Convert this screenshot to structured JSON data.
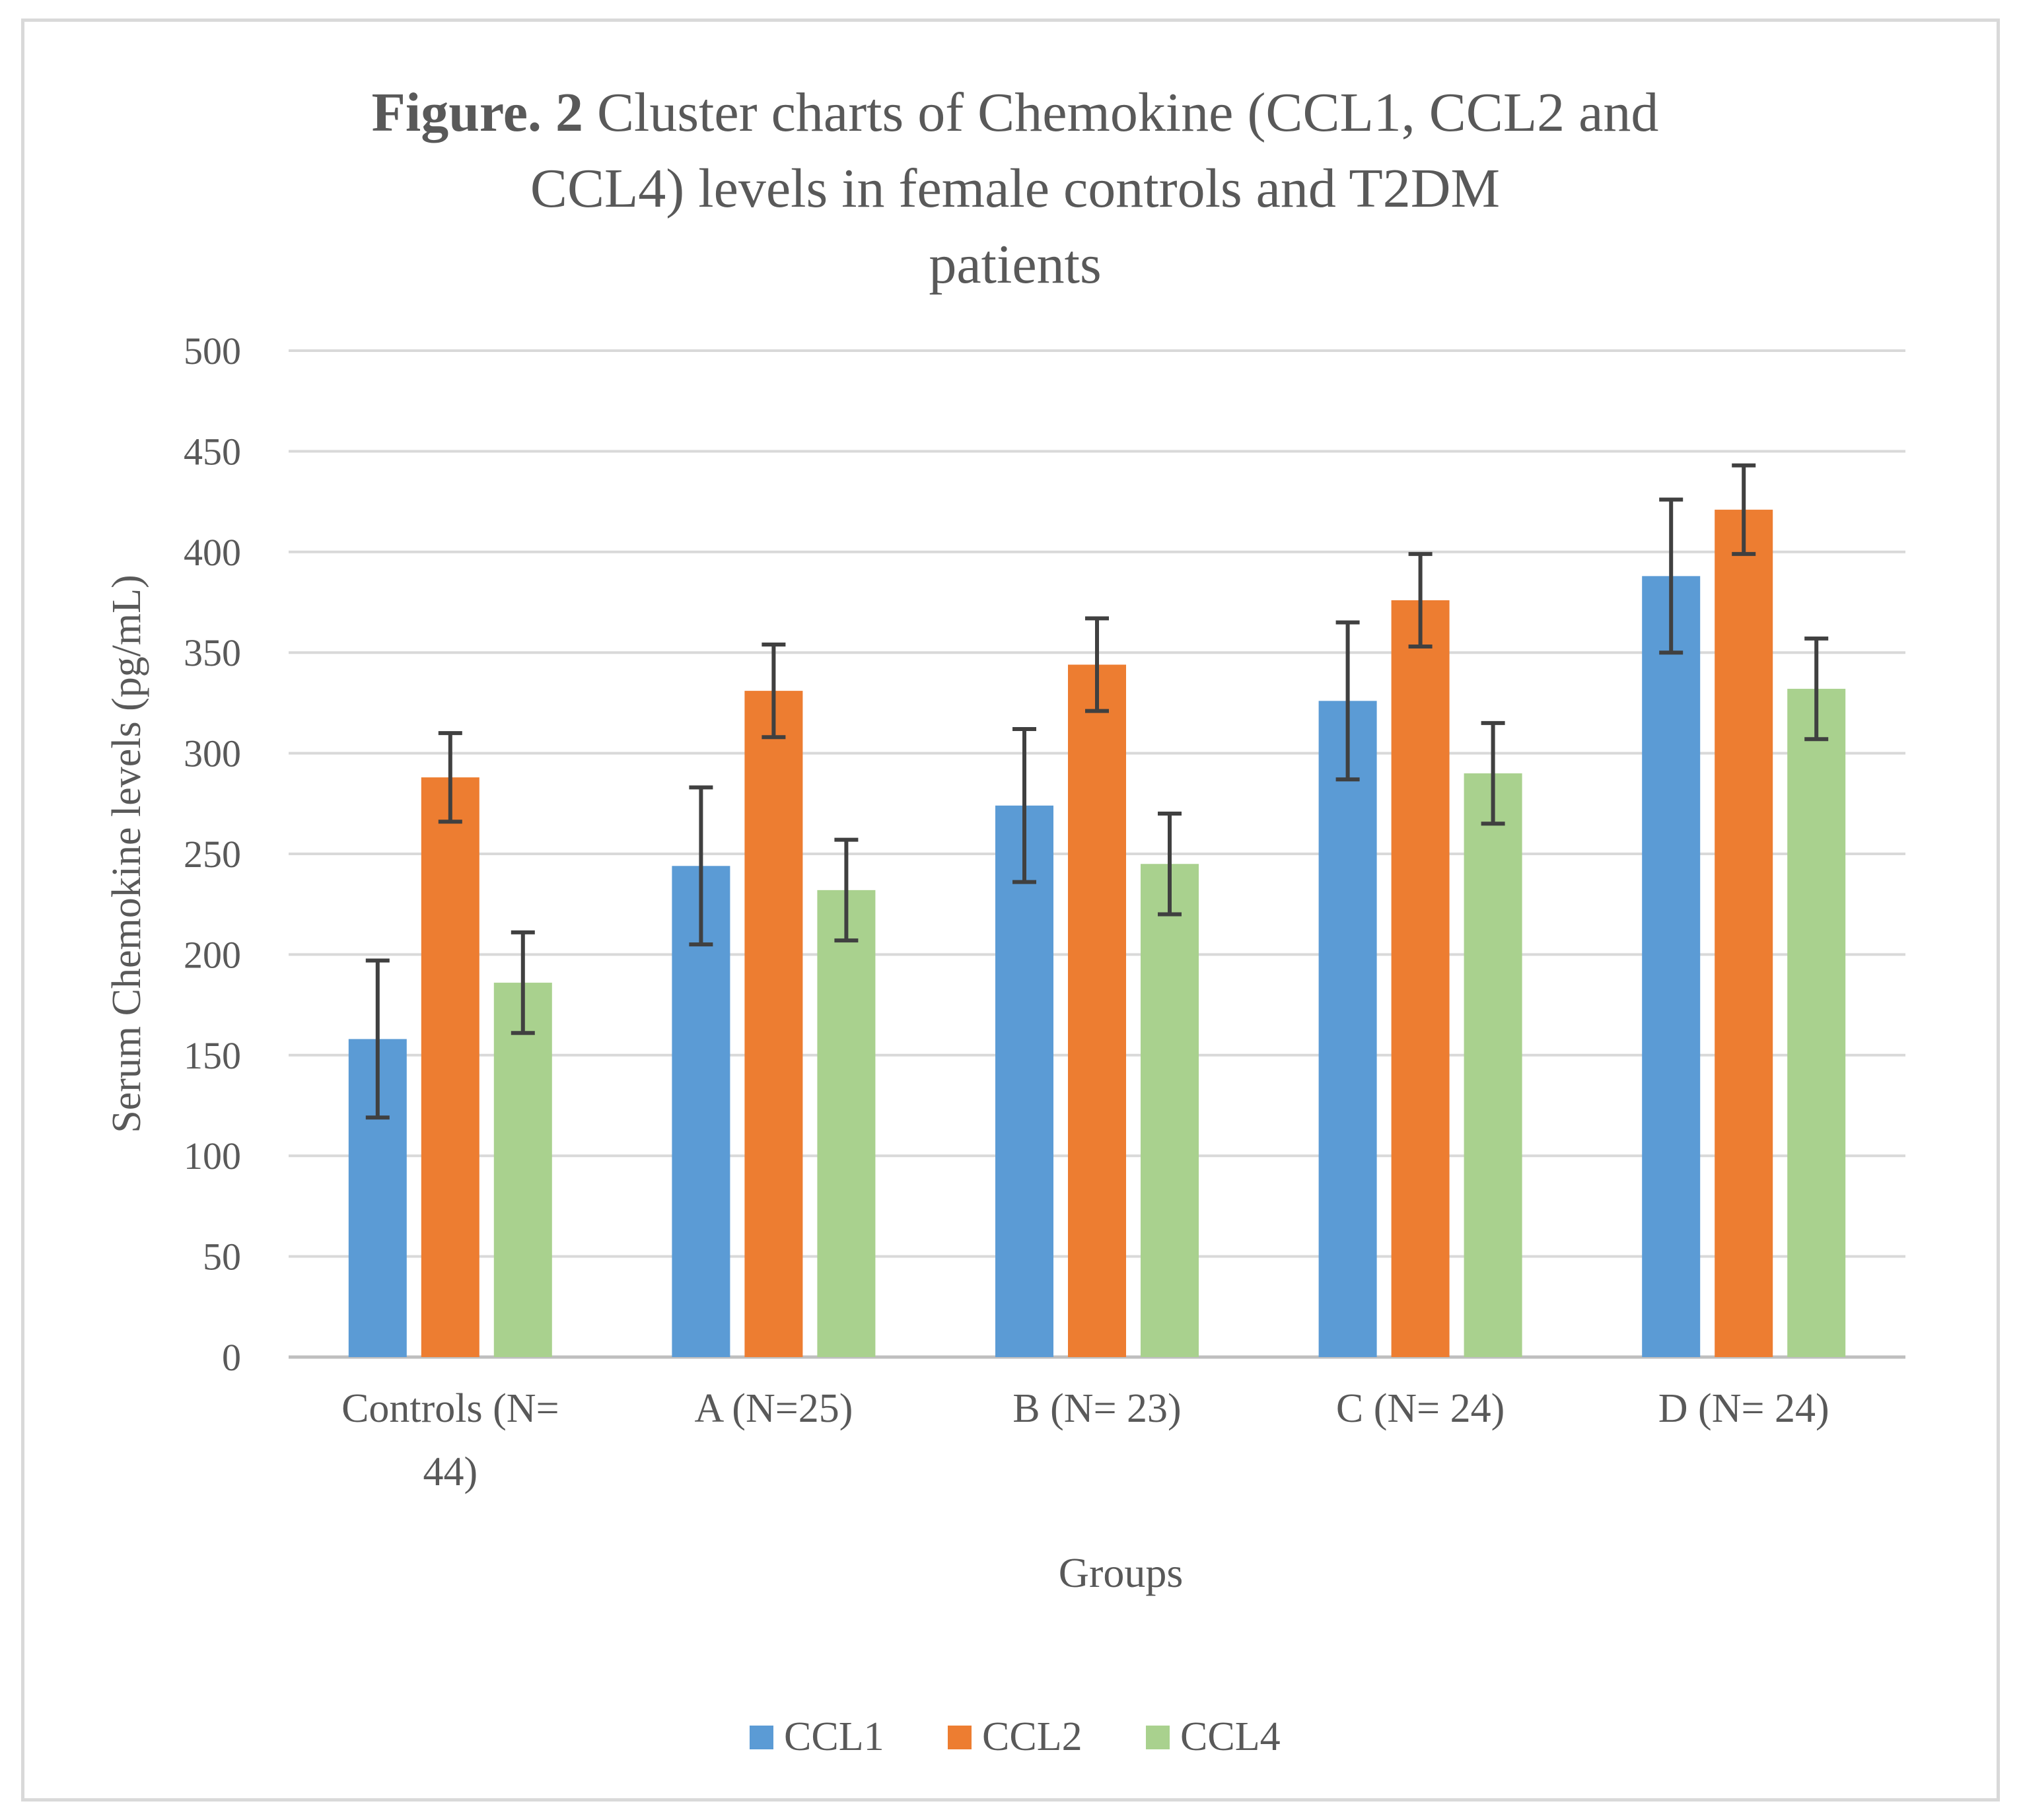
{
  "chart_data": {
    "type": "bar",
    "title_bold": "Figure. 2",
    "title_rest": "Cluster charts of  Chemokine (CCL1, CCL2 and",
    "title_line2": "CCL4)  levels  in female  controls and T2DM",
    "title_line3": "patients",
    "xlabel": "Groups",
    "ylabel": "Serum Chemokine levels  (pg/mL)",
    "ylim": [
      0,
      500
    ],
    "yticks": [
      "0",
      "50",
      "100",
      "150",
      "200",
      "250",
      "300",
      "350",
      "400",
      "450",
      "500"
    ],
    "grid": true,
    "legend_position": "bottom",
    "categories": [
      [
        "Controls (N=",
        "44)"
      ],
      [
        "A (N=25)"
      ],
      [
        "B (N= 23)"
      ],
      [
        "C (N= 24)"
      ],
      [
        "D (N= 24)"
      ]
    ],
    "series": [
      {
        "name": "CCL1",
        "color": "#5b9bd5",
        "values": [
          158,
          244,
          274,
          326,
          388
        ],
        "errors": [
          39,
          39,
          38,
          39,
          38
        ]
      },
      {
        "name": "CCL2",
        "color": "#ed7d31",
        "values": [
          288,
          331,
          344,
          376,
          421
        ],
        "errors": [
          22,
          23,
          23,
          23,
          22
        ]
      },
      {
        "name": "CCL4",
        "color": "#a9d18e",
        "values": [
          186,
          232,
          245,
          290,
          332
        ],
        "errors": [
          25,
          25,
          25,
          25,
          25
        ]
      }
    ]
  }
}
